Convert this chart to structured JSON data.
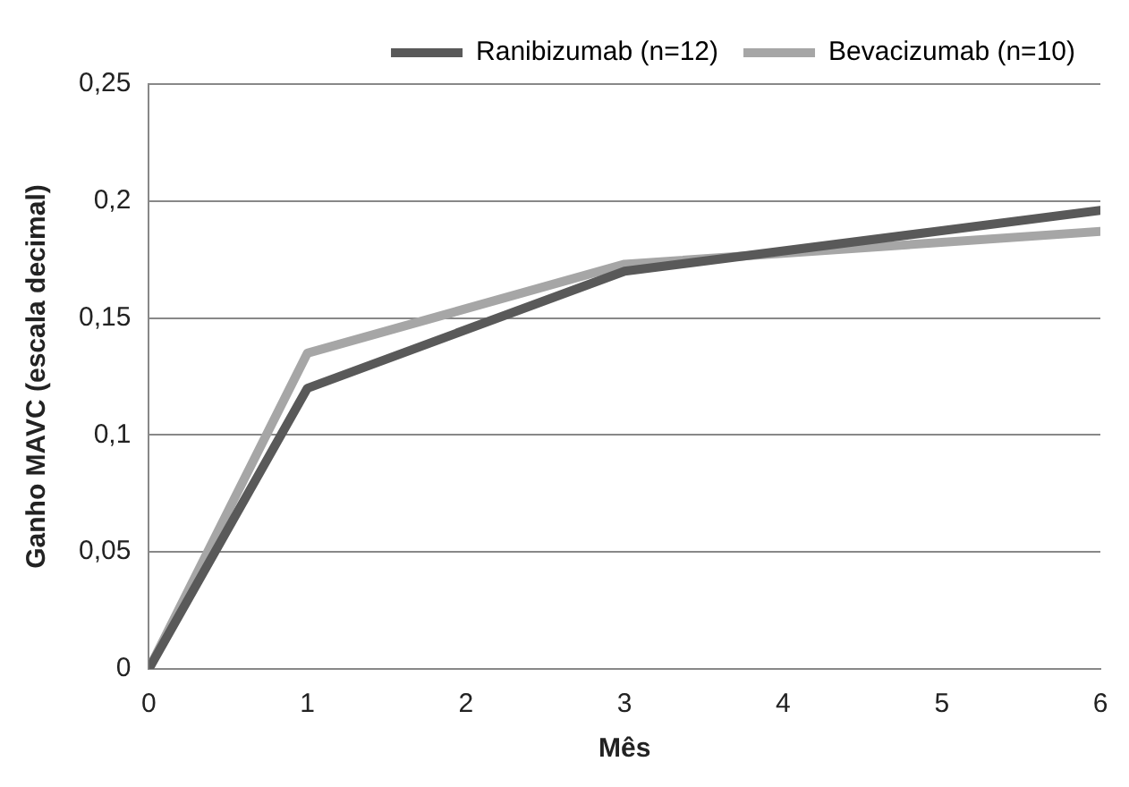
{
  "chart_data": {
    "type": "line",
    "xlabel": "Mês",
    "ylabel": "Ganho MAVC (escala decimal)",
    "x": [
      0,
      1,
      3,
      6
    ],
    "series": [
      {
        "name": "Ranibizumab (n=12)",
        "color": "#595959",
        "values": [
          0,
          0.12,
          0.17,
          0.196
        ]
      },
      {
        "name": "Bevacizumab (n=10)",
        "color": "#a6a6a6",
        "values": [
          0,
          0.135,
          0.173,
          0.187
        ]
      }
    ],
    "xlim": [
      0,
      6
    ],
    "xticks": [
      0,
      1,
      2,
      3,
      4,
      5,
      6
    ],
    "ylim": [
      0,
      0.25
    ],
    "yticks": [
      {
        "value": 0,
        "label": "0"
      },
      {
        "value": 0.05,
        "label": "0,05"
      },
      {
        "value": 0.1,
        "label": "0,1"
      },
      {
        "value": 0.15,
        "label": "0,15"
      },
      {
        "value": 0.2,
        "label": "0,2"
      },
      {
        "value": 0.25,
        "label": "0,25"
      }
    ],
    "grid": "y",
    "legend": "top right",
    "marker": "none"
  }
}
